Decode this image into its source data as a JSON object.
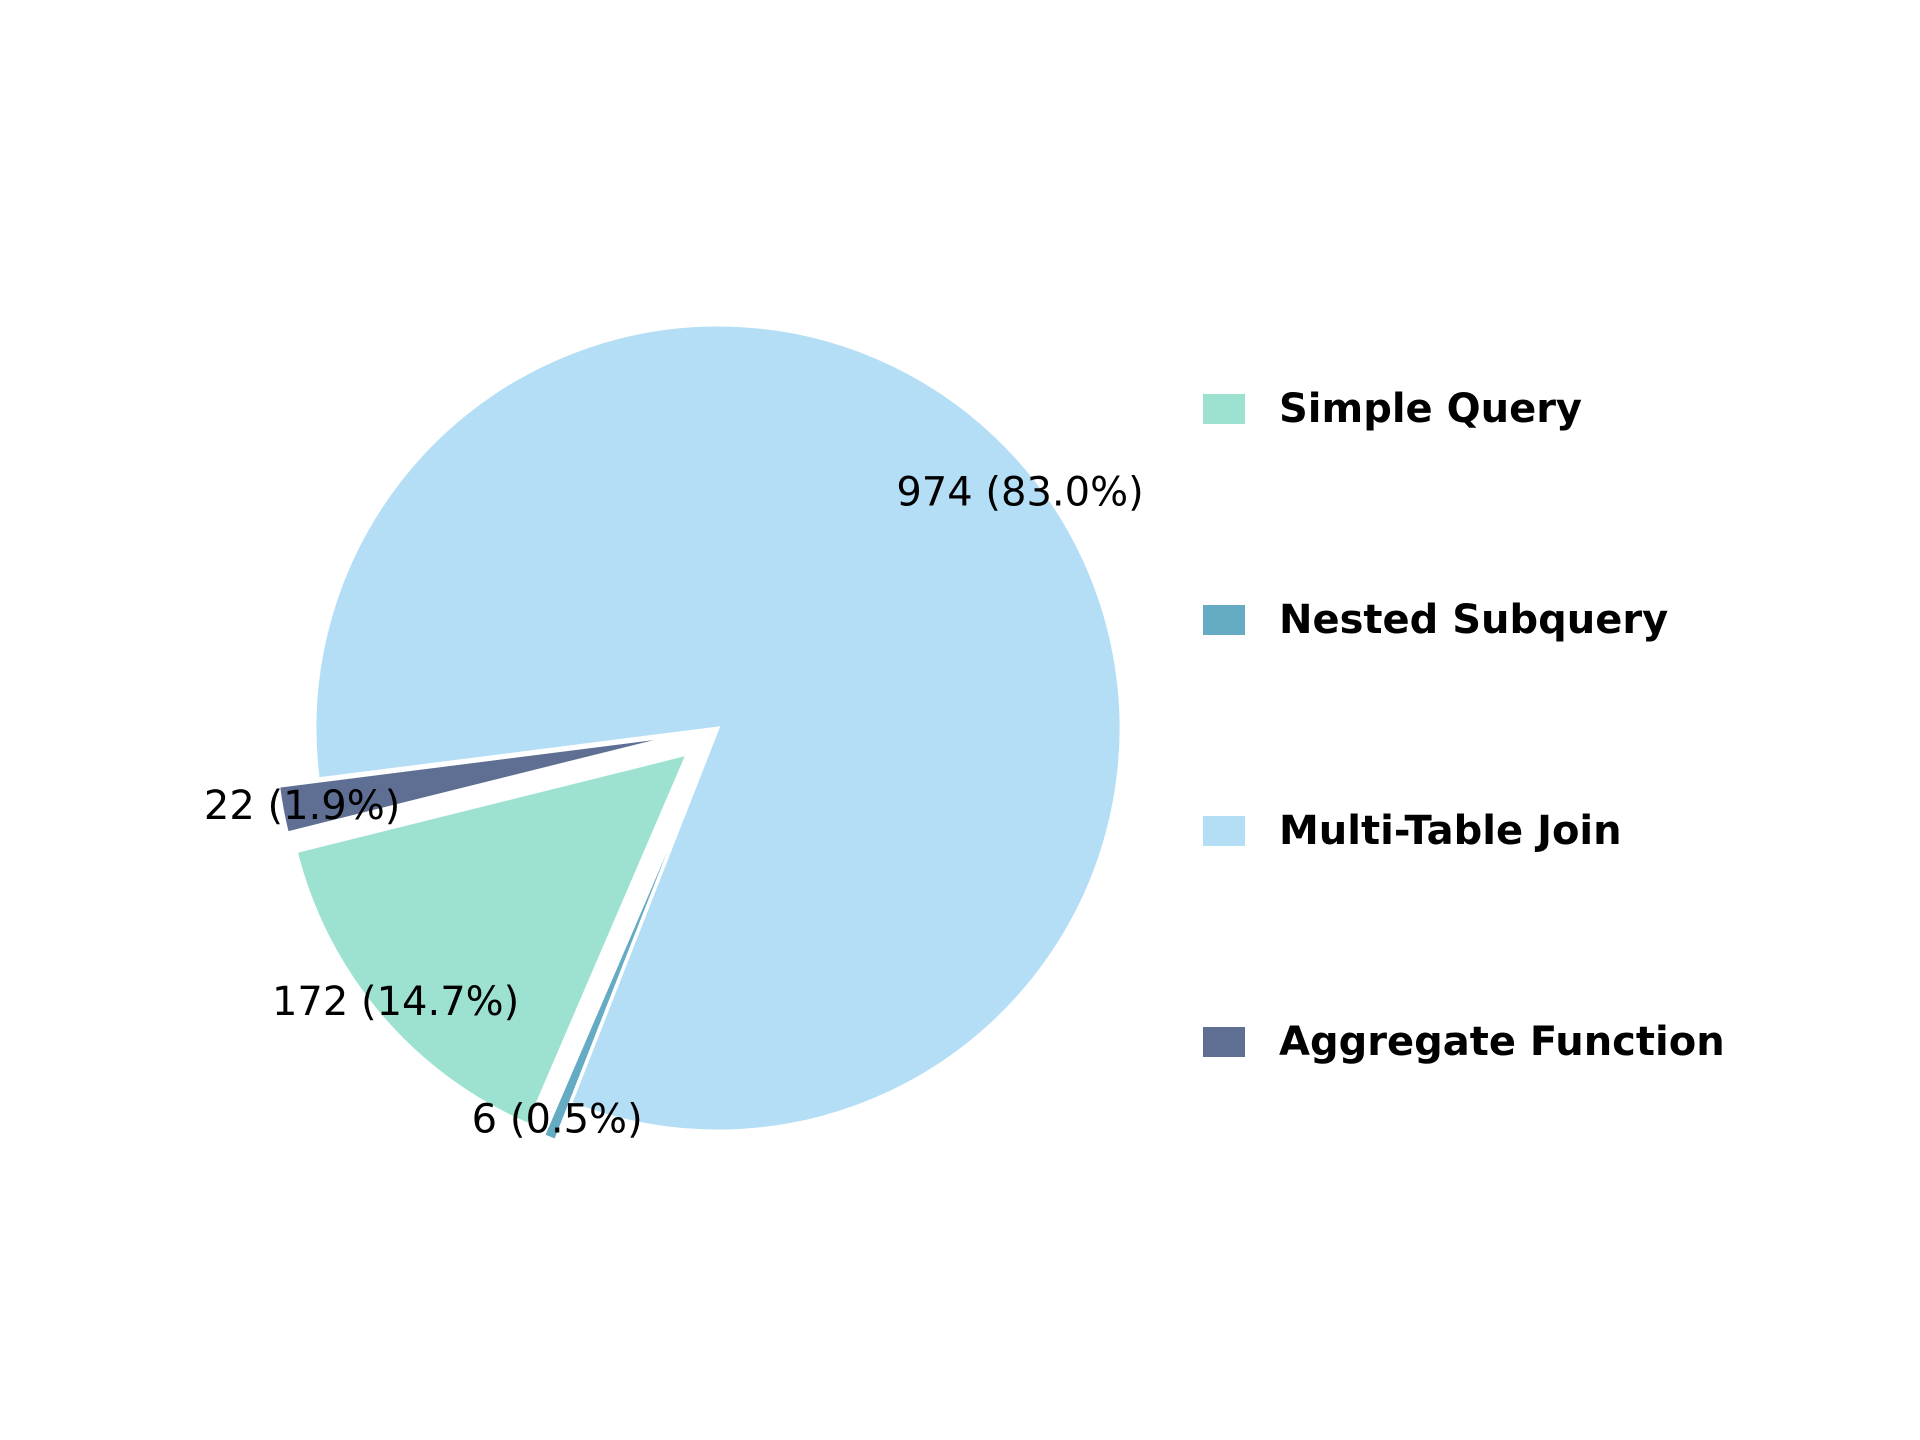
{
  "chart_data": {
    "type": "pie",
    "title": "",
    "start_angle_deg": 194,
    "direction": "counterclockwise",
    "legend_position": "right",
    "slices": [
      {
        "label": "Simple Query",
        "value": 172,
        "percent": 14.7,
        "display": "172 (14.7%)",
        "color": "#9de2d0",
        "exploded": true
      },
      {
        "label": "Nested Subquery",
        "value": 6,
        "percent": 0.5,
        "display": "6 (0.5%)",
        "color": "#66abc4",
        "exploded": true
      },
      {
        "label": "Multi-Table Join",
        "value": 974,
        "percent": 83.0,
        "display": "974 (83.0%)",
        "color": "#b3def6",
        "exploded": false
      },
      {
        "label": "Aggregate Function",
        "value": 22,
        "percent": 1.9,
        "display": "22 (1.9%)",
        "color": "#5f6e93",
        "exploded": true
      }
    ]
  }
}
